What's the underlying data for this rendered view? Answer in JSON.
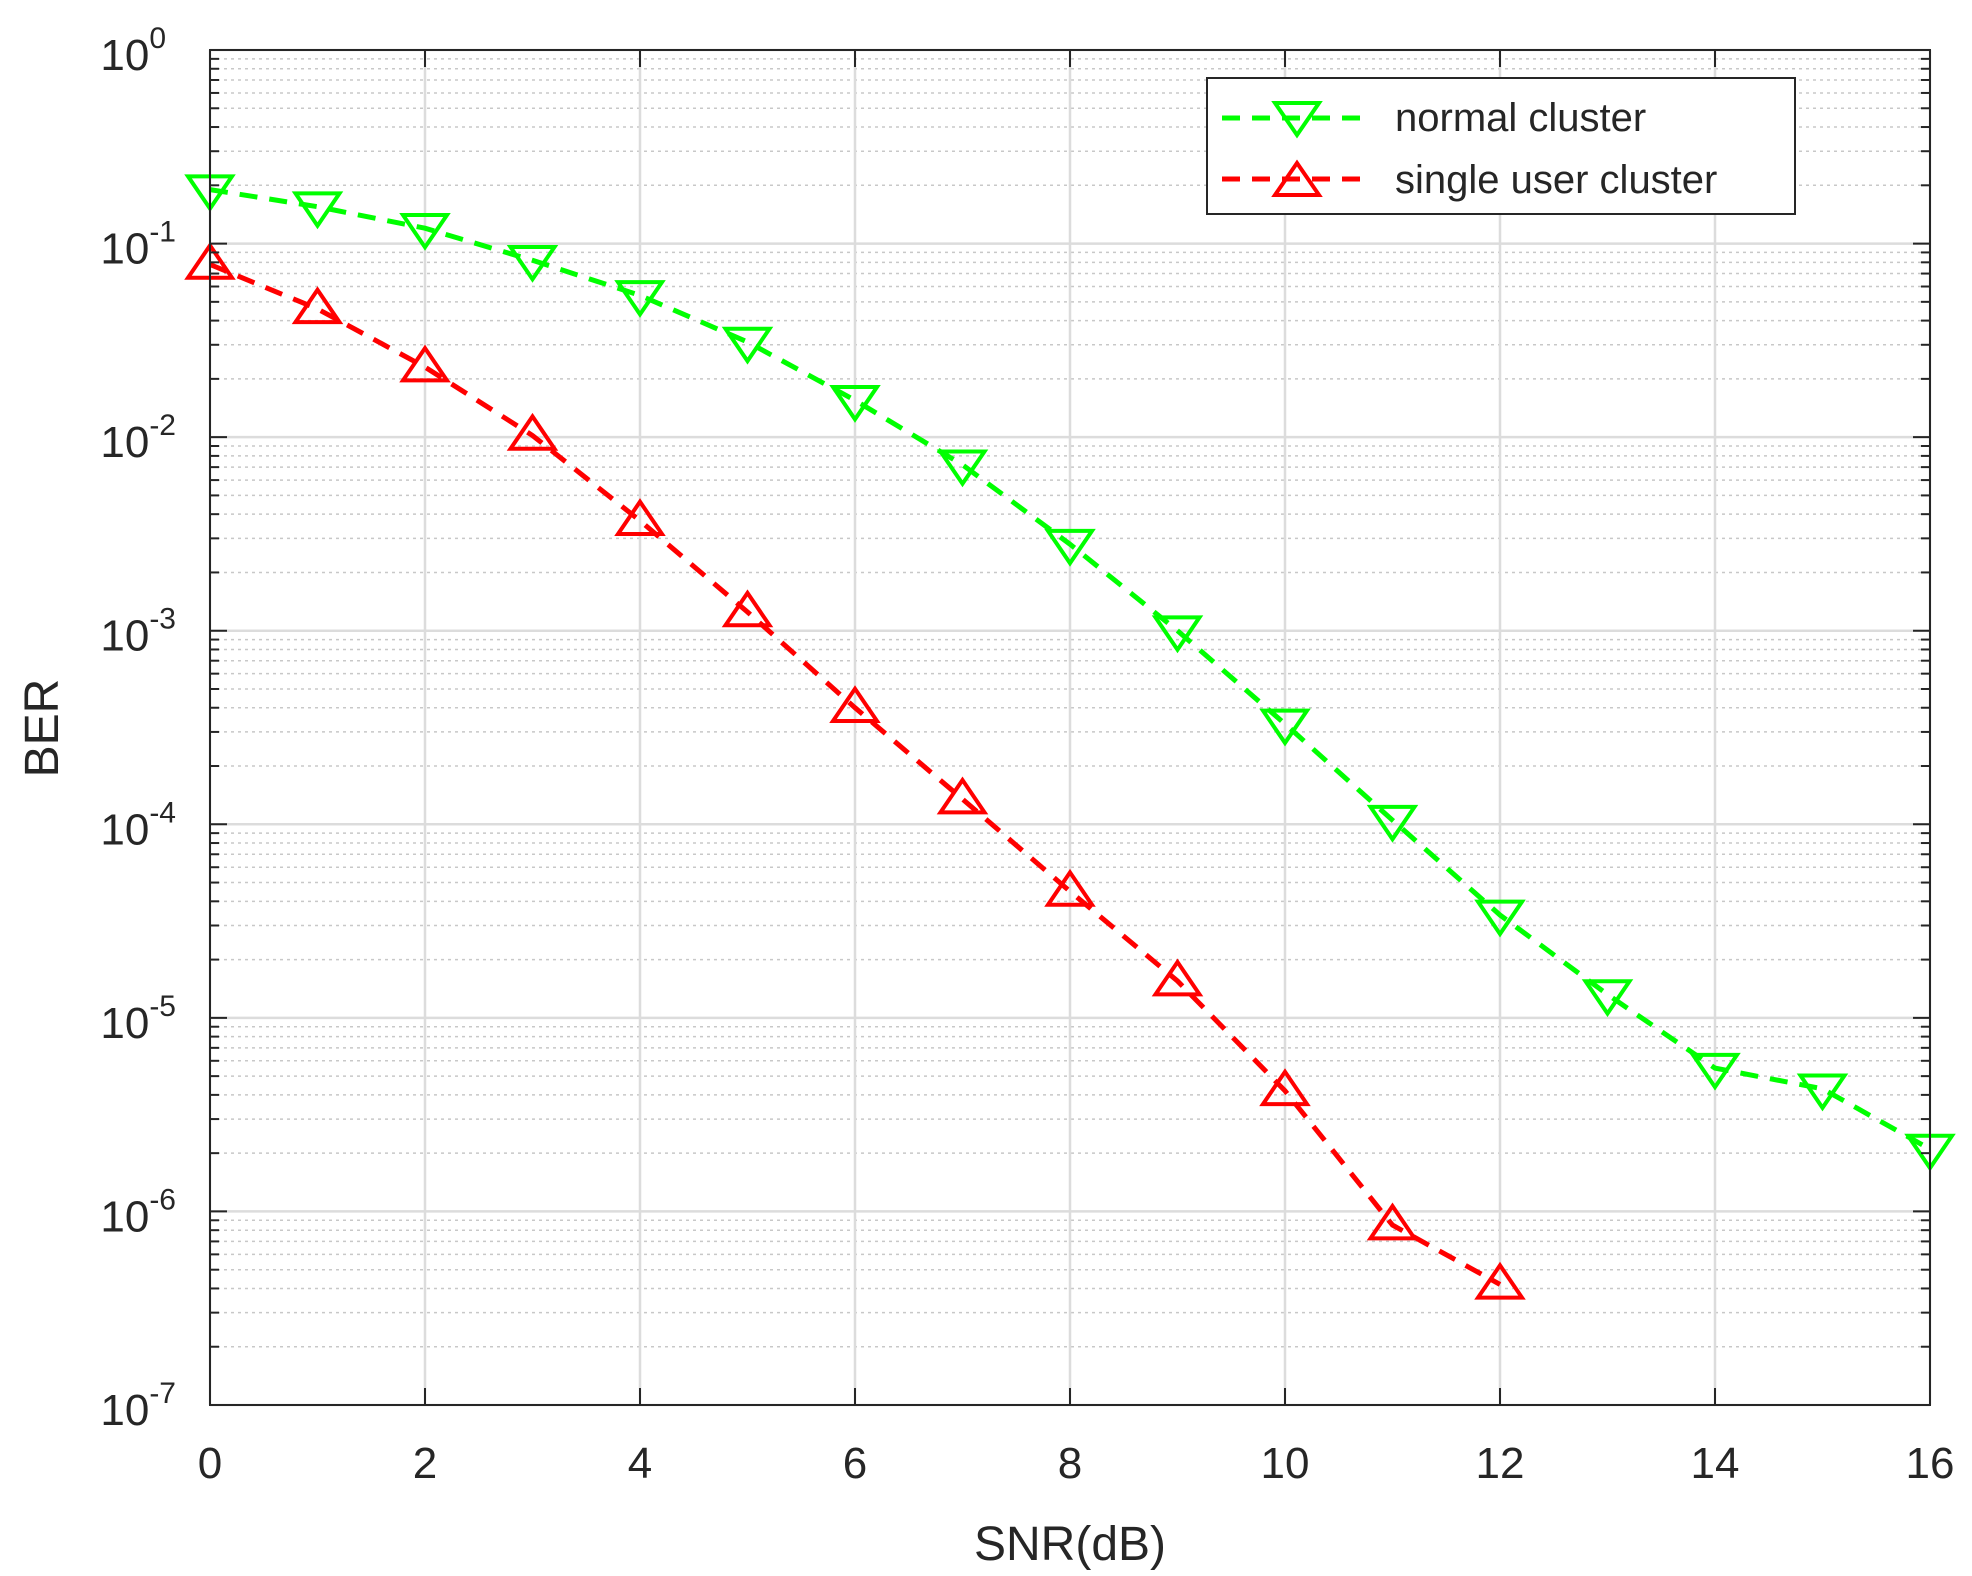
{
  "chart_data": {
    "type": "line",
    "title": "",
    "xlabel": "SNR(dB)",
    "ylabel": "BER",
    "xlim": [
      0,
      16
    ],
    "ylim": [
      1e-07,
      1
    ],
    "yscale": "log",
    "grid": true,
    "minor_grid": true,
    "legend_position": "top-right",
    "x_ticks": [
      0,
      2,
      4,
      6,
      8,
      10,
      12,
      14,
      16
    ],
    "y_tick_exponents": [
      0,
      -1,
      -2,
      -3,
      -4,
      -5,
      -6,
      -7
    ],
    "y_tick_base": "10",
    "series": [
      {
        "name": "normal cluster",
        "color": "#00ff00",
        "marker": "triangle-down",
        "line_style": "dashed",
        "x": [
          0,
          1,
          2,
          3,
          4,
          5,
          6,
          7,
          8,
          9,
          10,
          11,
          12,
          13,
          14,
          15,
          16
        ],
        "y": [
          0.19,
          0.155,
          0.12,
          0.082,
          0.054,
          0.031,
          0.0155,
          0.0072,
          0.0028,
          0.001,
          0.00033,
          0.000105,
          3.4e-05,
          1.32e-05,
          5.5e-06,
          4.3e-06,
          2.1e-06
        ]
      },
      {
        "name": "single user cluster",
        "color": "#ff0000",
        "marker": "triangle-up",
        "line_style": "dashed",
        "x": [
          0,
          1,
          2,
          3,
          4,
          5,
          6,
          7,
          8,
          9,
          10,
          11,
          12
        ],
        "y": [
          0.078,
          0.046,
          0.023,
          0.0102,
          0.0037,
          0.00125,
          0.0004,
          0.000135,
          4.5e-05,
          1.55e-05,
          4.2e-06,
          8.5e-07,
          4.2e-07
        ]
      }
    ]
  }
}
